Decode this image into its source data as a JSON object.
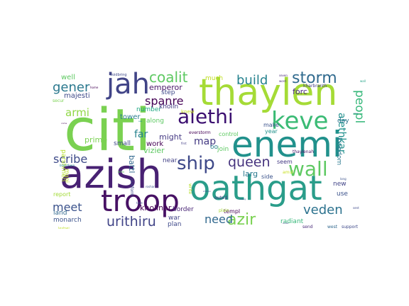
{
  "words": [
    {
      "text": "citi",
      "color": "#7ad151"
    },
    {
      "text": "azish",
      "color": "#482173"
    },
    {
      "text": "thaylen",
      "color": "#a5db36"
    },
    {
      "text": "enemi",
      "color": "#21918c"
    },
    {
      "text": "oathgat",
      "color": "#2a9d8a"
    },
    {
      "text": "troop",
      "color": "#471164"
    },
    {
      "text": "jah",
      "color": "#414487"
    },
    {
      "text": "keve",
      "color": "#3bbb75"
    },
    {
      "text": "alethi",
      "color": "#3b0f70"
    },
    {
      "text": "wall",
      "color": "#5ec962"
    },
    {
      "text": "ship",
      "color": "#3e4989"
    },
    {
      "text": "azir",
      "color": "#7ad151"
    },
    {
      "text": "veden",
      "color": "#2c728e"
    },
    {
      "text": "queen",
      "color": "#46337e"
    },
    {
      "text": "storm",
      "color": "#306a8e"
    },
    {
      "text": "coalit",
      "color": "#5ec962"
    },
    {
      "text": "urithiru",
      "color": "#414487"
    },
    {
      "text": "build",
      "color": "#26828e"
    },
    {
      "text": "spanre",
      "color": "#440154"
    },
    {
      "text": "scribe",
      "color": "#3e4a89"
    },
    {
      "text": "gener",
      "color": "#2a788e"
    },
    {
      "text": "meet",
      "color": "#3b528b"
    },
    {
      "text": "need",
      "color": "#31688e"
    },
    {
      "text": "map",
      "color": "#443a83"
    },
    {
      "text": "armi",
      "color": "#8fd744"
    },
    {
      "text": "peopl",
      "color": "#35b779"
    },
    {
      "text": "alethkar",
      "color": "#21908d"
    },
    {
      "text": "emperor",
      "color": "#481467"
    },
    {
      "text": "kholinar",
      "color": "#440154"
    },
    {
      "text": "forc",
      "color": "#482979"
    },
    {
      "text": "far",
      "color": "#26828e"
    },
    {
      "text": "might",
      "color": "#443983"
    },
    {
      "text": "larg",
      "color": "#2a788e"
    },
    {
      "text": "majesti",
      "color": "#3e4989"
    },
    {
      "text": "battl",
      "color": "#31688e"
    },
    {
      "text": "vizier",
      "color": "#5ec962"
    },
    {
      "text": "prime",
      "color": "#7ad151"
    },
    {
      "text": "work",
      "color": "#440154"
    },
    {
      "text": "tower",
      "color": "#287c8e"
    },
    {
      "text": "kingdom",
      "color": "#2a788e"
    },
    {
      "text": "near",
      "color": "#424186"
    },
    {
      "text": "number",
      "color": "#22a884"
    },
    {
      "text": "step",
      "color": "#3e4989"
    },
    {
      "text": "kholin",
      "color": "#443983"
    },
    {
      "text": "oo",
      "color": "#277f8e"
    },
    {
      "text": "join",
      "color": "#5ec962"
    },
    {
      "text": "monarch",
      "color": "#3b528b"
    },
    {
      "text": "radiant",
      "color": "#35b779"
    },
    {
      "text": "well",
      "color": "#5ec962"
    },
    {
      "text": "much",
      "color": "#c2df23"
    },
    {
      "text": "land",
      "color": "#31688e"
    },
    {
      "text": "report",
      "color": "#a2da37"
    },
    {
      "text": "mani",
      "color": "#bddf26"
    },
    {
      "text": "parshmen",
      "color": "#b5de2b"
    },
    {
      "text": "small",
      "color": "#3f4889"
    },
    {
      "text": "along",
      "color": "#5ec962"
    },
    {
      "text": "war",
      "color": "#414487"
    },
    {
      "text": "plan",
      "color": "#3e4989"
    },
    {
      "text": "use",
      "color": "#3b528b"
    },
    {
      "text": "new",
      "color": "#404387"
    },
    {
      "text": "day",
      "color": "#2c718e"
    },
    {
      "text": "border",
      "color": "#482475"
    },
    {
      "text": "templ",
      "color": "#440154"
    },
    {
      "text": "side",
      "color": "#3b528b"
    },
    {
      "text": "seem",
      "color": "#443983"
    },
    {
      "text": "make",
      "color": "#3b528b"
    },
    {
      "text": "year",
      "color": "#21918c"
    },
    {
      "text": "control",
      "color": "#5ec962"
    },
    {
      "text": "everstorm",
      "color": "#440154"
    },
    {
      "text": "kharbranth",
      "color": "#443a83"
    },
    {
      "text": "thaylenah",
      "color": "#481467"
    },
    {
      "text": "knew",
      "color": "#c8e020"
    },
    {
      "text": "write",
      "color": "#b5de2b"
    },
    {
      "text": "outsid",
      "color": "#443983"
    },
    {
      "text": "platform",
      "color": "#3e4989"
    },
    {
      "text": "secur",
      "color": "#7ad151"
    },
    {
      "text": "amul",
      "color": "#c8e020"
    },
    {
      "text": "plain",
      "color": "#a8db34"
    },
    {
      "text": "send",
      "color": "#482878"
    },
    {
      "text": "west",
      "color": "#31688e"
    },
    {
      "text": "support",
      "color": "#3e4989"
    },
    {
      "text": "voidbring",
      "color": "#3e4989"
    },
    {
      "text": "seven",
      "color": "#482878"
    },
    {
      "text": "word",
      "color": "#482878"
    },
    {
      "text": "wall",
      "color": "#20a386"
    },
    {
      "text": "long",
      "color": "#3b528b"
    },
    {
      "text": "sent",
      "color": "#3e4989"
    },
    {
      "text": "leshwi",
      "color": "#bddf26"
    },
    {
      "text": "first",
      "color": "#433e85"
    },
    {
      "text": "arriv",
      "color": "#5ec962"
    },
    {
      "text": "roshar",
      "color": "#3b528b"
    },
    {
      "text": "blackthorn",
      "color": "#25848e"
    },
    {
      "text": "home",
      "color": "#440154"
    },
    {
      "text": "take",
      "color": "#3e4989"
    },
    {
      "text": "shallan",
      "color": "#3b528b"
    },
    {
      "text": "chang",
      "color": "#3e4989"
    },
    {
      "text": "see",
      "color": "#21918c"
    },
    {
      "text": "come",
      "color": "#440154"
    },
    {
      "text": "king",
      "color": "#2a788e"
    },
    {
      "text": "amaz",
      "color": "#3e4989"
    }
  ]
}
